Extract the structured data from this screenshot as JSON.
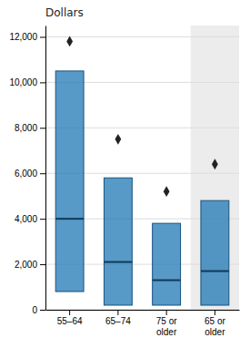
{
  "chart_data": {
    "type": "box",
    "title": "Dollars",
    "categories": [
      "55–64",
      "65–74",
      "75 or\nolder",
      "65 or\nolder"
    ],
    "boxes": [
      {
        "q1": 800,
        "median": 4000,
        "q3": 10500,
        "mean": 11800
      },
      {
        "q1": 200,
        "median": 2100,
        "q3": 5800,
        "mean": 7500
      },
      {
        "q1": 200,
        "median": 1300,
        "q3": 3800,
        "mean": 5200
      },
      {
        "q1": 200,
        "median": 1700,
        "q3": 4800,
        "mean": 6400
      }
    ],
    "ylim": [
      0,
      12500
    ],
    "yticks": [
      0,
      {
        "value": 2000,
        "label": "2,000"
      },
      {
        "value": 4000,
        "label": "4,000"
      },
      {
        "value": 6000,
        "label": "6,000"
      },
      {
        "value": 8000,
        "label": "8,000"
      },
      {
        "value": 10000,
        "label": "10,000"
      },
      {
        "value": 12000,
        "label": "12,000"
      }
    ],
    "grid": true
  }
}
